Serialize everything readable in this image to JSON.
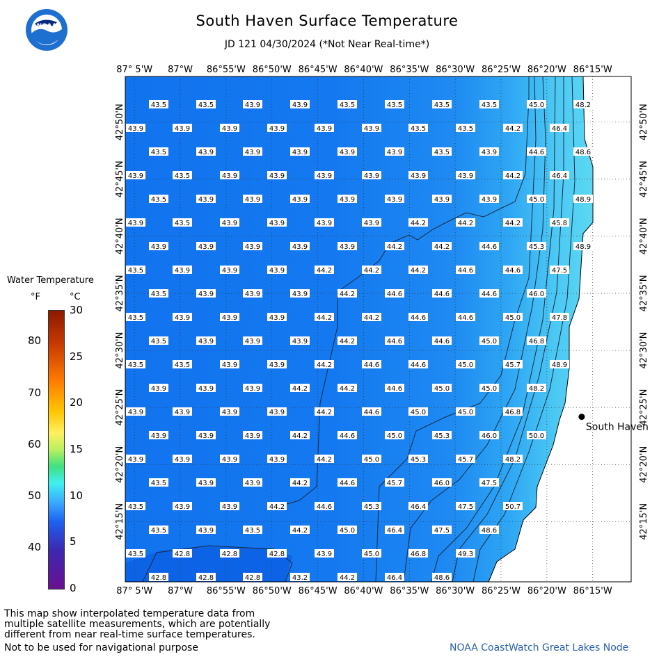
{
  "header": {
    "title": "South Haven Surface Temperature",
    "subtitle": "JD 121 04/30/2024 (*Not Near Real-time*)"
  },
  "logo": {
    "text": "NOAA"
  },
  "map": {
    "lon_labels": [
      "87° 5'W",
      "87°W",
      "86°55'W",
      "86°50'W",
      "86°45'W",
      "86°40'W",
      "86°35'W",
      "86°30'W",
      "86°25'W",
      "86°20'W",
      "86°15'W"
    ],
    "lat_labels": [
      "42°50'N",
      "42°45'N",
      "42°40'N",
      "42°35'N",
      "42°30'N",
      "42°25'N",
      "42°20'N",
      "42°15'N"
    ],
    "lon_ticks": [
      -87.0833,
      -87.0,
      -86.9167,
      -86.8333,
      -86.75,
      -86.6667,
      -86.5833,
      -86.5,
      -86.4167,
      -86.3333,
      -86.25
    ],
    "lat_ticks": [
      42.8333,
      42.75,
      42.6667,
      42.5833,
      42.5,
      42.4167,
      42.3333,
      42.25
    ],
    "extent": {
      "lon_min": -87.1,
      "lon_max": -86.18,
      "lat_min": 42.162,
      "lat_max": 42.9
    },
    "city": {
      "name": "South Haven",
      "lon": -86.27,
      "lat": 42.403
    },
    "temperature_rows": [
      {
        "lat": 42.85,
        "lons": [
          -87.04,
          -86.99,
          -86.94,
          -86.9,
          -86.84,
          -86.78,
          -86.72,
          -86.67,
          -86.61,
          -86.55,
          -86.48,
          -86.43
        ],
        "values": [
          "43.5",
          "43.5",
          "43.9",
          "43.9",
          "43.5",
          "43.5",
          "43.5",
          "43.5",
          "45.0",
          "48.2"
        ],
        "offset": 1
      },
      {
        "lat": 42.809,
        "values": [
          "43.9",
          "43.9",
          "43.9",
          "43.9",
          "43.9",
          "43.9",
          "43.5",
          "43.5",
          "44.2",
          "46.4"
        ]
      },
      {
        "lat": 42.768,
        "values": [
          "43.5",
          "43.9",
          "43.9",
          "43.9",
          "43.9",
          "43.9",
          "43.5",
          "43.9",
          "44.6",
          "48.6"
        ]
      },
      {
        "lat": 42.727,
        "values": [
          "43.9",
          "43.5",
          "43.9",
          "43.9",
          "43.9",
          "43.9",
          "43.9",
          "43.9",
          "44.2",
          "46.4"
        ]
      },
      {
        "lat": 42.686,
        "values": [
          "43.5",
          "43.9",
          "43.9",
          "43.9",
          "43.9",
          "43.9",
          "43.9",
          "43.9",
          "45.0",
          "48.9"
        ]
      },
      {
        "lat": 42.645,
        "values": [
          "43.9",
          "43.5",
          "43.9",
          "43.9",
          "43.9",
          "43.9",
          "44.2",
          "44.2",
          "44.2",
          "45.8"
        ]
      },
      {
        "lat": 42.604,
        "values": [
          "43.9",
          "43.9",
          "43.9",
          "43.9",
          "43.9",
          "44.2",
          "44.2",
          "44.6",
          "45.3",
          "48.9"
        ]
      },
      {
        "lat": 42.563,
        "values": [
          "43.5",
          "43.9",
          "43.9",
          "43.9",
          "44.2",
          "44.2",
          "44.2",
          "44.6",
          "44.6",
          "47.5"
        ]
      },
      {
        "lat": 42.522,
        "values": [
          "43.5",
          "43.9",
          "43.9",
          "43.9",
          "44.2",
          "44.6",
          "44.6",
          "44.6",
          "46.0"
        ]
      },
      {
        "lat": 42.481,
        "values": [
          "43.5",
          "43.9",
          "43.9",
          "43.9",
          "44.2",
          "44.2",
          "44.6",
          "44.6",
          "45.0",
          "47.8"
        ]
      },
      {
        "lat": 42.44,
        "values": [
          "43.5",
          "43.9",
          "43.9",
          "43.9",
          "44.2",
          "44.6",
          "44.6",
          "45.0",
          "46.8"
        ]
      },
      {
        "lat": 42.399,
        "values": [
          "43.5",
          "43.5",
          "43.9",
          "43.9",
          "44.2",
          "44.6",
          "44.6",
          "45.0",
          "45.7",
          "48.9"
        ]
      },
      {
        "lat": 42.358,
        "values": [
          "43.9",
          "43.9",
          "43.9",
          "44.2",
          "44.2",
          "44.6",
          "45.0",
          "45.0",
          "48.2"
        ]
      },
      {
        "lat": 42.317,
        "values": [
          "43.9",
          "43.9",
          "43.9",
          "43.9",
          "44.2",
          "44.6",
          "45.0",
          "45.0",
          "46.8"
        ]
      },
      {
        "lat": 42.276,
        "values": [
          "43.9",
          "43.9",
          "43.9",
          "44.2",
          "44.6",
          "45.0",
          "45.3",
          "46.0",
          "50.0"
        ]
      },
      {
        "lat": 42.235,
        "values": [
          "43.9",
          "43.9",
          "43.9",
          "43.9",
          "44.2",
          "45.0",
          "45.3",
          "45.7",
          "48.2"
        ]
      },
      {
        "lat": 42.194,
        "values": [
          "43.5",
          "43.9",
          "43.9",
          "44.2",
          "44.6",
          "45.7",
          "46.0",
          "47.5"
        ]
      },
      {
        "lat": 42.153,
        "values": [
          "43.5",
          "43.9",
          "43.9",
          "44.2",
          "44.6",
          "45.3",
          "46.4",
          "47.5",
          "50.7"
        ]
      },
      {
        "lat": 42.112,
        "values": [
          "43.5",
          "43.9",
          "43.5",
          "44.2",
          "45.0",
          "46.4",
          "47.5",
          "48.6"
        ]
      },
      {
        "lat": 42.071,
        "values": [
          "43.5",
          "42.8",
          "42.8",
          "42.8",
          "43.9",
          "45.0",
          "46.8",
          "49.3"
        ]
      },
      {
        "lat": 42.03,
        "values": [
          "42.8",
          "42.8",
          "42.8",
          "43.2",
          "44.2",
          "46.4",
          "48.6"
        ]
      }
    ]
  },
  "legend": {
    "title": "Water Temperature",
    "unit_f": "°F",
    "unit_c": "°C",
    "f_ticks": [
      "80",
      "70",
      "60",
      "50",
      "40"
    ],
    "c_ticks": [
      "30",
      "25",
      "20",
      "15",
      "10",
      "5",
      "0"
    ],
    "scale_c_min": 0,
    "scale_c_max": 30,
    "gradient_colors": [
      "#8b1a00",
      "#ff7a00",
      "#fff060",
      "#40e080",
      "#40f0f0",
      "#1e60f0",
      "#6a1090"
    ]
  },
  "footer": {
    "note_line1": "This map show interpolated temperature data from",
    "note_line2": "multiple satellite measurements, which are potentially",
    "note_line3": "different from near real-time surface temperatures.",
    "nav_warning": "Not to be used for navigational purpose",
    "credit": "NOAA CoastWatch Great Lakes Node"
  }
}
